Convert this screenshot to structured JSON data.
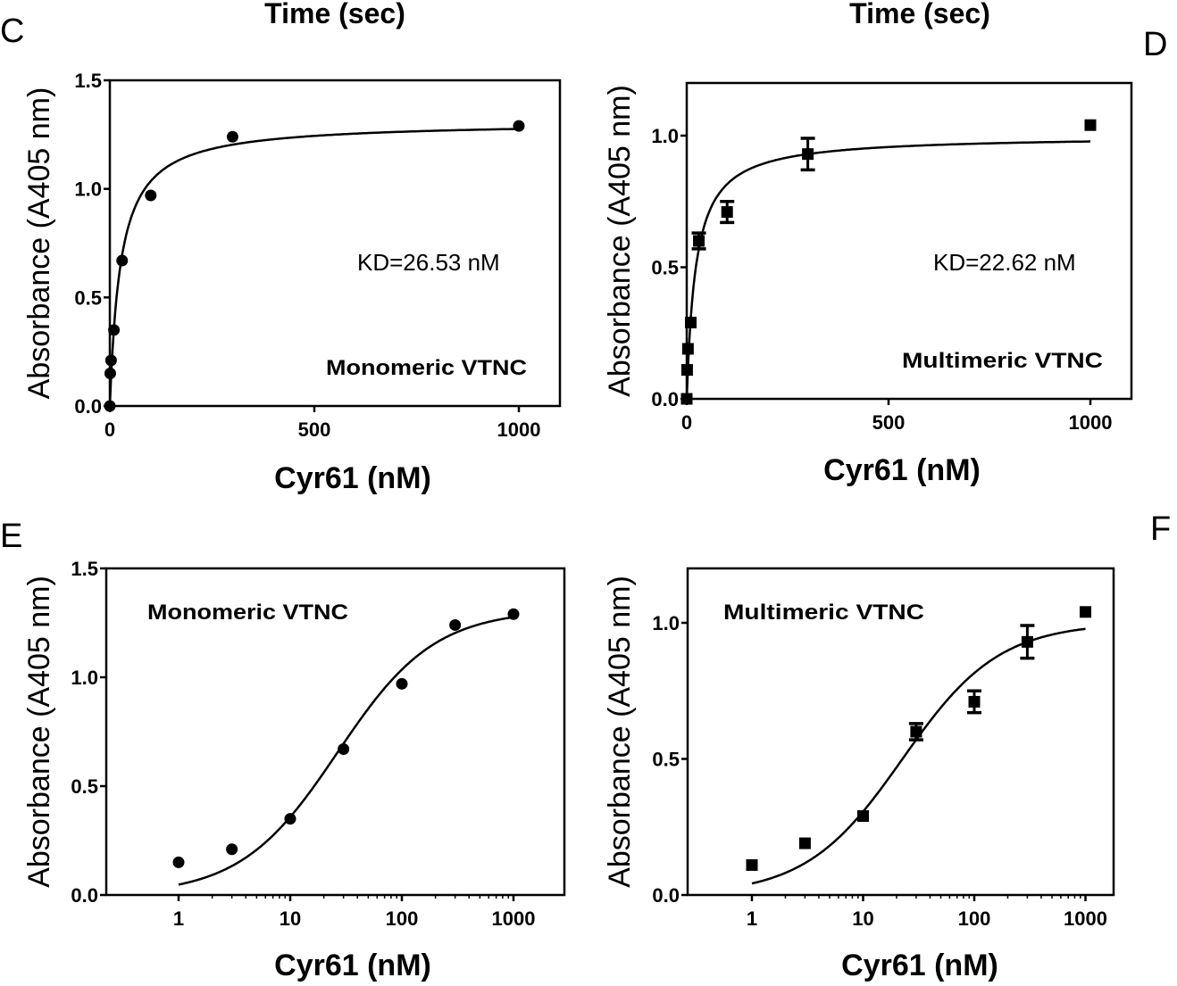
{
  "top_cut_labels": [
    "Time (sec)",
    "Time (sec)"
  ],
  "chart_data": [
    {
      "panel": "C",
      "type": "scatter",
      "xscale": "linear",
      "xlabel": "Cyr61 (nM)",
      "ylabel": "Absorbance (A405 nm)",
      "xlim": [
        0,
        1100
      ],
      "ylim": [
        0,
        1.5
      ],
      "xticks": [
        "0",
        "500",
        "1000"
      ],
      "yticks": [
        "0.0",
        "0.5",
        "1.0",
        "1.5"
      ],
      "marker": "circle",
      "x": [
        0,
        1,
        3,
        10,
        30,
        100,
        300,
        1000
      ],
      "y": [
        0,
        0.15,
        0.21,
        0.35,
        0.67,
        0.97,
        1.24,
        1.29
      ],
      "fit": {
        "model": "one-site binding",
        "Kd": 26.53,
        "Bmax": 1.31
      },
      "annotations": [
        "KD=26.53 nM",
        "Monomeric VTNC"
      ]
    },
    {
      "panel": "D",
      "type": "scatter",
      "xscale": "linear",
      "xlabel": "Cyr61 (nM)",
      "ylabel": "Absorbance (A405 nm)",
      "xlim": [
        0,
        1100
      ],
      "ylim": [
        0,
        1.2
      ],
      "xticks": [
        "0",
        "500",
        "1000"
      ],
      "yticks": [
        "0.0",
        "0.5",
        "1.0"
      ],
      "marker": "square",
      "x": [
        0,
        1,
        3,
        10,
        30,
        100,
        300,
        1000
      ],
      "y": [
        0,
        0.11,
        0.19,
        0.29,
        0.6,
        0.71,
        0.93,
        1.04
      ],
      "error": [
        0,
        0,
        0,
        0,
        0.03,
        0.04,
        0.06,
        0
      ],
      "fit": {
        "model": "one-site binding",
        "Kd": 22.62,
        "Bmax": 1.0
      },
      "annotations": [
        "KD=22.62 nM",
        "Multimeric VTNC"
      ]
    },
    {
      "panel": "E",
      "type": "scatter",
      "xscale": "log",
      "xlabel": "Cyr61 (nM)",
      "ylabel": "Absorbance (A405 nm)",
      "xlim": [
        0.3,
        3000
      ],
      "ylim": [
        0,
        1.5
      ],
      "xticks": [
        "1",
        "10",
        "100",
        "1000"
      ],
      "yticks": [
        "0.0",
        "0.5",
        "1.0",
        "1.5"
      ],
      "marker": "circle",
      "x": [
        1,
        3,
        10,
        30,
        100,
        300,
        1000
      ],
      "y": [
        0.15,
        0.21,
        0.35,
        0.67,
        0.97,
        1.24,
        1.29
      ],
      "fit": {
        "model": "one-site binding",
        "Kd": 26.53,
        "Bmax": 1.31
      },
      "annotations": [
        "Monomeric VTNC"
      ]
    },
    {
      "panel": "F",
      "type": "scatter",
      "xscale": "log",
      "xlabel": "Cyr61 (nM)",
      "ylabel": "Absorbance (A405 nm)",
      "xlim": [
        0.3,
        3000
      ],
      "ylim": [
        0,
        1.2
      ],
      "xticks": [
        "1",
        "10",
        "100",
        "1000"
      ],
      "yticks": [
        "0.0",
        "0.5",
        "1.0"
      ],
      "marker": "square",
      "x": [
        1,
        3,
        10,
        30,
        100,
        300,
        1000
      ],
      "y": [
        0.11,
        0.19,
        0.29,
        0.6,
        0.71,
        0.93,
        1.04
      ],
      "error": [
        0,
        0,
        0,
        0.03,
        0.04,
        0.06,
        0
      ],
      "fit": {
        "model": "one-site binding",
        "Kd": 22.62,
        "Bmax": 1.0
      },
      "annotations": [
        "Multimeric VTNC"
      ]
    }
  ]
}
